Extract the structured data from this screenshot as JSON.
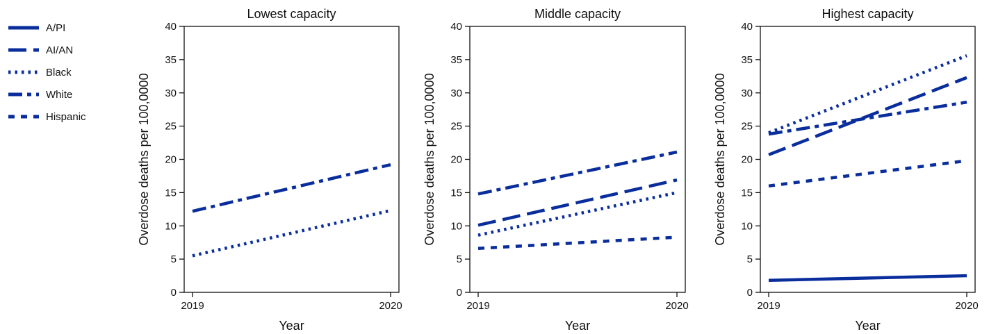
{
  "chart_data": {
    "type": "line",
    "series_styles": {
      "A/PI": "solid",
      "AI/AN": "long-dash",
      "Black": "dotted",
      "White": "dash-dot",
      "Hispanic": "short-dash"
    },
    "line_color": "#0a2d9c",
    "legend": {
      "placement": "left",
      "entries": [
        "A/PI",
        "AI/AN",
        "Black",
        "White",
        "Hispanic"
      ]
    },
    "panels": [
      {
        "title": "Lowest capacity",
        "xlabel": "Year",
        "ylabel": "Overdose deaths per 100,0000",
        "x": [
          "2019",
          "2020"
        ],
        "ylim": [
          0,
          40
        ],
        "yticks": [
          "0",
          "5",
          "10",
          "15",
          "20",
          "25",
          "30",
          "35",
          "40"
        ],
        "series": [
          {
            "name": "Black",
            "values": [
              5.5,
              12.3
            ]
          },
          {
            "name": "White",
            "values": [
              12.2,
              19.2
            ]
          }
        ]
      },
      {
        "title": "Middle capacity",
        "xlabel": "Year",
        "ylabel": "Overdose deaths per 100,0000",
        "x": [
          "2019",
          "2020"
        ],
        "ylim": [
          0,
          40
        ],
        "yticks": [
          "0",
          "5",
          "10",
          "15",
          "20",
          "25",
          "30",
          "35",
          "40"
        ],
        "series": [
          {
            "name": "AI/AN",
            "values": [
              10.1,
              16.9
            ]
          },
          {
            "name": "Black",
            "values": [
              8.6,
              15.0
            ]
          },
          {
            "name": "White",
            "values": [
              14.8,
              21.1
            ]
          },
          {
            "name": "Hispanic",
            "values": [
              6.6,
              8.3
            ]
          }
        ]
      },
      {
        "title": "Highest capacity",
        "xlabel": "Year",
        "ylabel": "Overdose deaths per 100,0000",
        "x": [
          "2019",
          "2020"
        ],
        "ylim": [
          0,
          40
        ],
        "yticks": [
          "0",
          "5",
          "10",
          "15",
          "20",
          "25",
          "30",
          "35",
          "40"
        ],
        "series": [
          {
            "name": "A/PI",
            "values": [
              1.8,
              2.5
            ]
          },
          {
            "name": "AI/AN",
            "values": [
              20.7,
              32.3
            ]
          },
          {
            "name": "Black",
            "values": [
              24.0,
              35.6
            ]
          },
          {
            "name": "White",
            "values": [
              23.8,
              28.6
            ]
          },
          {
            "name": "Hispanic",
            "values": [
              16.0,
              19.8
            ]
          }
        ]
      }
    ]
  }
}
